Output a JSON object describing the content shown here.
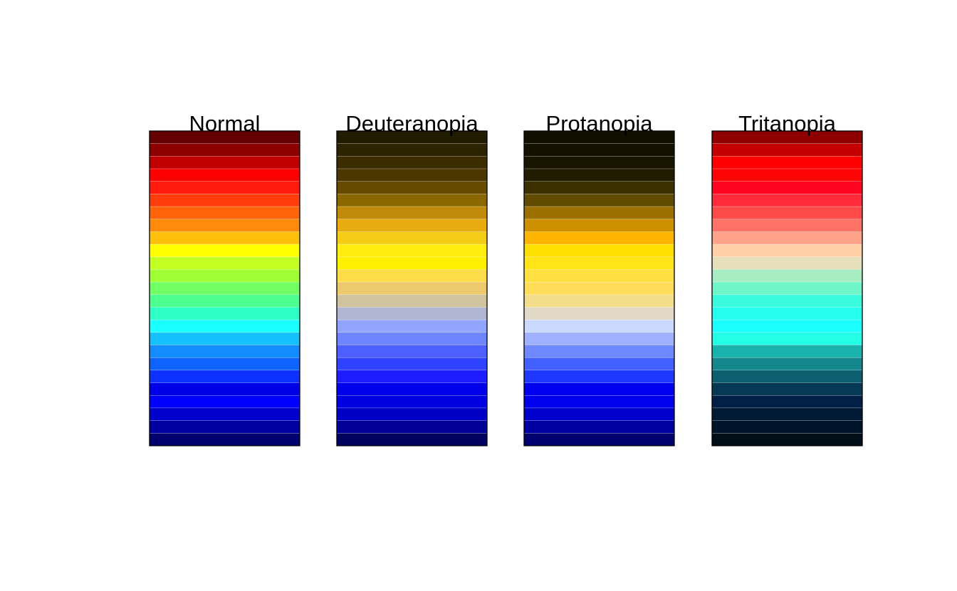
{
  "chart_data": {
    "type": "heatmap",
    "n_bands": 25,
    "panels": [
      {
        "title": "Normal",
        "colors": [
          "#650000",
          "#8d0000",
          "#c00000",
          "#ff0000",
          "#ff1a0c",
          "#ff3c0b",
          "#ff6508",
          "#ff8a0c",
          "#ffc00b",
          "#ffff00",
          "#c4ff24",
          "#9fff34",
          "#70ff64",
          "#4dff8e",
          "#2effc5",
          "#1affff",
          "#15c0ff",
          "#128cff",
          "#0d64ff",
          "#0d32ff",
          "#0000e8",
          "#0000ff",
          "#0000cc",
          "#0000a0",
          "#000070"
        ]
      },
      {
        "title": "Deuteranopia",
        "colors": [
          "#211c00",
          "#2c2300",
          "#3b2d00",
          "#4b3600",
          "#664a00",
          "#8b6700",
          "#c08b0b",
          "#e9ac10",
          "#f4cc15",
          "#ffee0f",
          "#fff000",
          "#fddc4a",
          "#ecc96c",
          "#cfc49e",
          "#b0b6d2",
          "#91a5ff",
          "#6f84ff",
          "#4d60ff",
          "#2f42ff",
          "#1c1cff",
          "#0000ea",
          "#0000e0",
          "#0000c5",
          "#000095",
          "#00005f"
        ]
      },
      {
        "title": "Protanopia",
        "colors": [
          "#110f00",
          "#141100",
          "#191500",
          "#211b00",
          "#3c2f00",
          "#614b00",
          "#9b7000",
          "#cd9100",
          "#ffb400",
          "#ffdf00",
          "#ffe417",
          "#ffe040",
          "#ffdd58",
          "#f3dc8a",
          "#e1d9c6",
          "#ccd9ff",
          "#a0b2ff",
          "#6f87ff",
          "#4260ff",
          "#1f38ff",
          "#0000f0",
          "#0000ee",
          "#0000cc",
          "#0000a0",
          "#000070"
        ]
      },
      {
        "title": "Tritanopia",
        "colors": [
          "#8e0000",
          "#c40000",
          "#ff0000",
          "#ff0404",
          "#ff0521",
          "#ff2a3c",
          "#ff4a4a",
          "#ff7366",
          "#ffa28a",
          "#ffcfa8",
          "#e6dfbb",
          "#a8ecc4",
          "#6ff6c8",
          "#3bfbde",
          "#25fff0",
          "#1cffff",
          "#23ffe7",
          "#1ab2ad",
          "#14878d",
          "#0c5f6e",
          "#063954",
          "#021f45",
          "#001a36",
          "#001429",
          "#000e18"
        ]
      }
    ]
  }
}
